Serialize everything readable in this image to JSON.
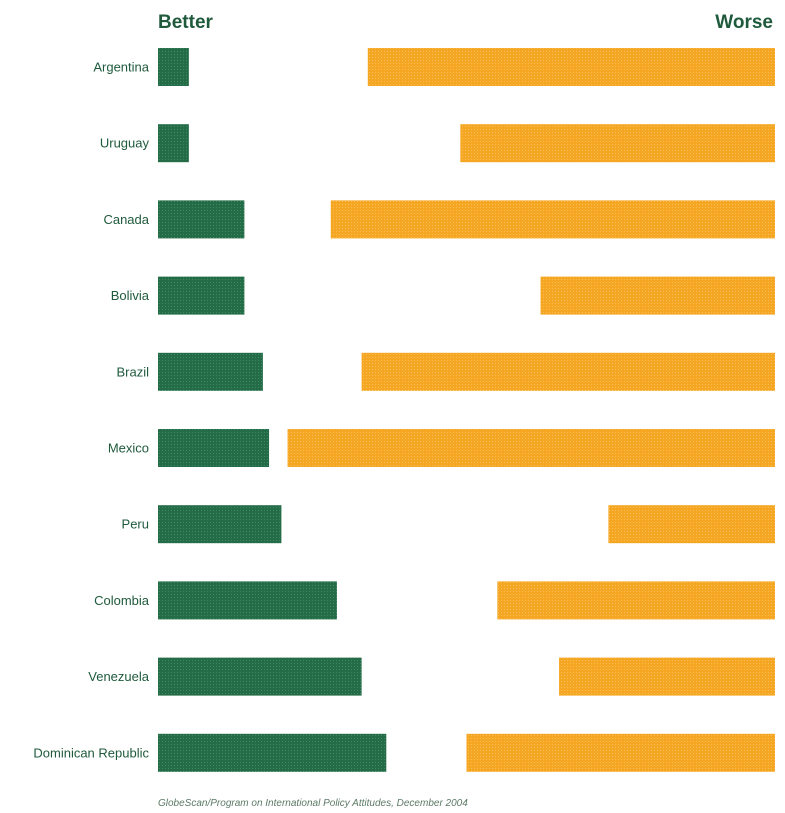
{
  "chart_data": {
    "type": "bar",
    "header": {
      "left": "Better",
      "right": "Worse"
    },
    "categories": [
      "Argentina",
      "Uruguay",
      "Canada",
      "Bolivia",
      "Brazil",
      "Mexico",
      "Peru",
      "Colombia",
      "Venezuela",
      "Dominican Republic"
    ],
    "series": [
      {
        "values": [
          5,
          5,
          14,
          14,
          17,
          18,
          20,
          29,
          33,
          37
        ]
      },
      {
        "values": [
          66,
          51,
          72,
          38,
          67,
          79,
          27,
          45,
          35,
          50
        ]
      }
    ],
    "xlim": [
      0,
      100
    ],
    "grid": false,
    "colors": {
      "better": "#246b47",
      "worse": "#f5a623",
      "text": "#1f5a3c",
      "source_text": "#5c7a66"
    },
    "source": "GlobeScan/Program on International Policy Attitudes, December 2004"
  }
}
